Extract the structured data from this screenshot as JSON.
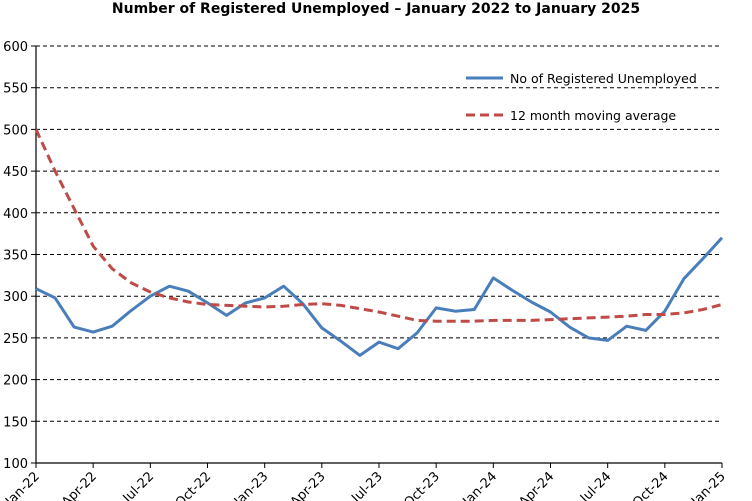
{
  "chart_data": {
    "type": "line",
    "title": "Number of Registered Unemployed – January 2022 to January 2025",
    "xlabel": "",
    "ylabel": "",
    "ylim": [
      100,
      600
    ],
    "yticks": [
      100,
      150,
      200,
      250,
      300,
      350,
      400,
      450,
      500,
      550,
      600
    ],
    "grid": true,
    "legend_position": "top-right",
    "x": [
      "Jan-22",
      "Feb-22",
      "Mar-22",
      "Apr-22",
      "May-22",
      "Jun-22",
      "Jul-22",
      "Aug-22",
      "Sep-22",
      "Oct-22",
      "Nov-22",
      "Dec-22",
      "Jan-23",
      "Feb-23",
      "Mar-23",
      "Apr-23",
      "May-23",
      "Jun-23",
      "Jul-23",
      "Aug-23",
      "Sep-23",
      "Oct-23",
      "Nov-23",
      "Dec-23",
      "Jan-24",
      "Feb-24",
      "Mar-24",
      "Apr-24",
      "May-24",
      "Jun-24",
      "Jul-24",
      "Aug-24",
      "Sep-24",
      "Oct-24",
      "Nov-24",
      "Dec-24",
      "Jan-25"
    ],
    "xtick_labels": [
      "Jan-22",
      "Apr-22",
      "Jul-22",
      "Oct-22",
      "Jan-23",
      "Apr-23",
      "Jul-23",
      "Oct-23",
      "Jan-24",
      "Apr-24",
      "Jul-24",
      "Oct-24",
      "Jan-25"
    ],
    "series": [
      {
        "name": "No of Registered Unemployed",
        "color": "#4a7ebb",
        "style": "solid",
        "values": [
          309,
          298,
          263,
          257,
          264,
          283,
          300,
          312,
          306,
          292,
          277,
          292,
          298,
          312,
          291,
          262,
          246,
          229,
          245,
          237,
          256,
          286,
          282,
          284,
          322,
          307,
          293,
          281,
          263,
          250,
          247,
          264,
          259,
          282,
          321,
          345,
          370
        ]
      },
      {
        "name": "12 month moving average",
        "color": "#be4b48",
        "style": "dashed",
        "values": [
          500,
          450,
          405,
          360,
          333,
          316,
          305,
          298,
          293,
          290,
          289,
          288,
          287,
          288,
          290,
          291,
          289,
          285,
          281,
          276,
          271,
          270,
          270,
          270,
          271,
          271,
          271,
          272,
          273,
          274,
          275,
          276,
          278,
          278,
          280,
          284,
          290
        ]
      }
    ]
  }
}
